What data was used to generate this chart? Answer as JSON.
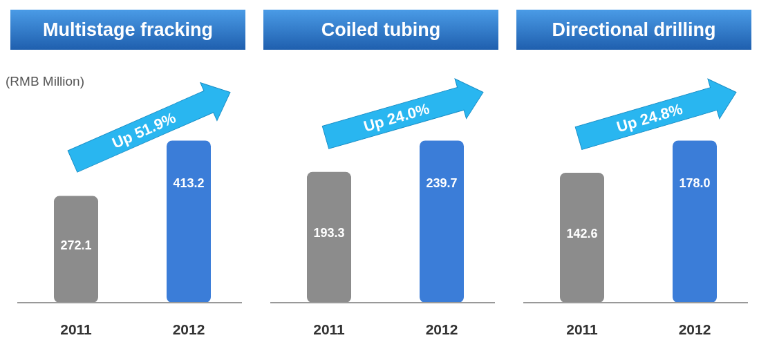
{
  "chart_data": [
    {
      "type": "bar",
      "title": "Multistage fracking",
      "ylabel": "(RMB Million)",
      "categories": [
        "2011",
        "2012"
      ],
      "values": [
        272.1,
        413.2
      ],
      "value_labels": [
        "272.1",
        "413.2"
      ],
      "colors": [
        "#8c8c8c",
        "#3b7dd8"
      ],
      "annotations": [
        "Up 51.9%"
      ]
    },
    {
      "type": "bar",
      "title": "Coiled tubing",
      "categories": [
        "2011",
        "2012"
      ],
      "values": [
        193.3,
        239.7
      ],
      "value_labels": [
        "193.3",
        "239.7"
      ],
      "colors": [
        "#8c8c8c",
        "#3b7dd8"
      ],
      "annotations": [
        "Up 24.0%"
      ]
    },
    {
      "type": "bar",
      "title": "Directional drilling",
      "categories": [
        "2011",
        "2012"
      ],
      "values": [
        142.6,
        178.0
      ],
      "value_labels": [
        "142.6",
        "178.0"
      ],
      "colors": [
        "#8c8c8c",
        "#3b7dd8"
      ],
      "annotations": [
        "Up 24.8%"
      ]
    }
  ]
}
